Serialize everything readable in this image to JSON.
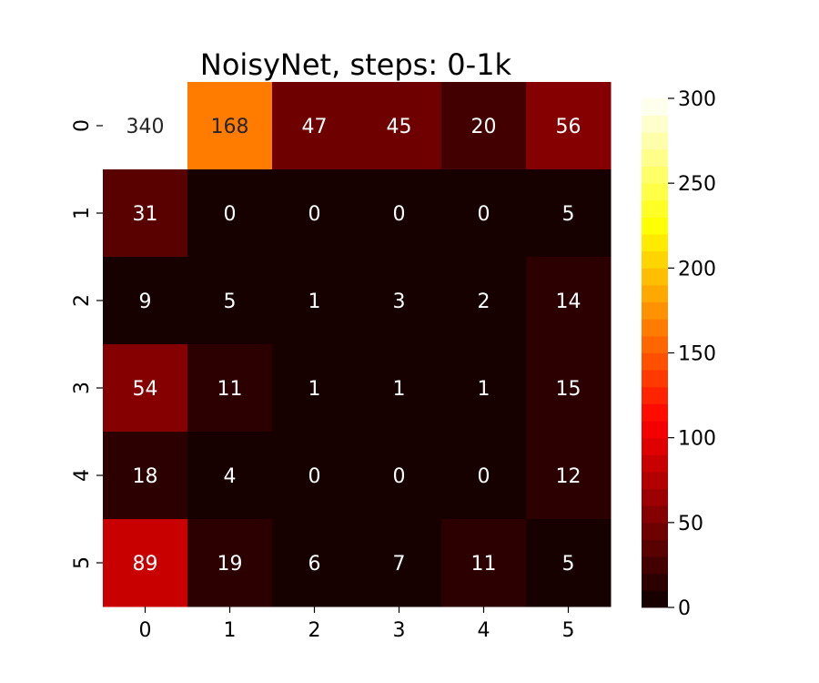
{
  "chart_data": {
    "type": "heatmap",
    "title": "NoisyNet, steps: 0-1k",
    "xlabel": "",
    "ylabel": "",
    "x_categories": [
      "0",
      "1",
      "2",
      "3",
      "4",
      "5"
    ],
    "y_categories": [
      "0",
      "1",
      "2",
      "3",
      "4",
      "5"
    ],
    "values": [
      [
        340,
        168,
        47,
        45,
        20,
        56
      ],
      [
        31,
        0,
        0,
        0,
        0,
        5
      ],
      [
        9,
        5,
        1,
        3,
        2,
        14
      ],
      [
        54,
        11,
        1,
        1,
        1,
        15
      ],
      [
        18,
        4,
        0,
        0,
        0,
        12
      ],
      [
        89,
        19,
        6,
        7,
        11,
        5
      ]
    ],
    "colorscale": "hot",
    "color_levels": 30,
    "vmin": 0,
    "vmax": 300,
    "colorbar_ticks": [
      "0",
      "50",
      "100",
      "150",
      "200",
      "250",
      "300"
    ],
    "grid": false,
    "legend": "colorbar-right"
  }
}
